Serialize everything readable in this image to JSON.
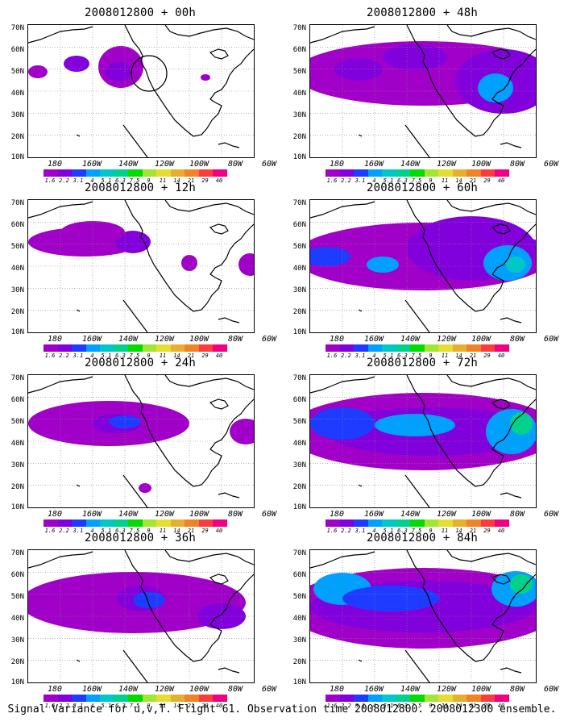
{
  "panels": [
    {
      "title": "2008012800 + 00h"
    },
    {
      "title": "2008012800 + 48h"
    },
    {
      "title": "2008012800 + 12h"
    },
    {
      "title": "2008012800 + 60h"
    },
    {
      "title": "2008012800 + 24h"
    },
    {
      "title": "2008012800 + 72h"
    },
    {
      "title": "2008012800 + 36h"
    },
    {
      "title": "2008012800 + 84h"
    }
  ],
  "axes": {
    "y_labels": [
      "70N",
      "60N",
      "50N",
      "40N",
      "30N",
      "20N",
      "10N"
    ],
    "x_labels": [
      "180",
      "160W",
      "140W",
      "120W",
      "100W",
      "80W",
      "60W"
    ]
  },
  "colorbar": {
    "labels": [
      "1.6",
      "2.2",
      "3.1",
      "4",
      "5.1",
      "6.3",
      "7.5",
      "9",
      "11",
      "14",
      "21",
      "29",
      "40"
    ],
    "colors": [
      "#a000c8",
      "#8200dc",
      "#1e3cff",
      "#00a0ff",
      "#00c8c8",
      "#00d28c",
      "#00dc00",
      "#a0e632",
      "#e6dc32",
      "#e6af2d",
      "#f08228",
      "#fa3c3c",
      "#f00082"
    ]
  },
  "caption": "Signal Variance for u,v,T. Flight 61. Observation time 2008012800. 2008012300 ensemble."
}
